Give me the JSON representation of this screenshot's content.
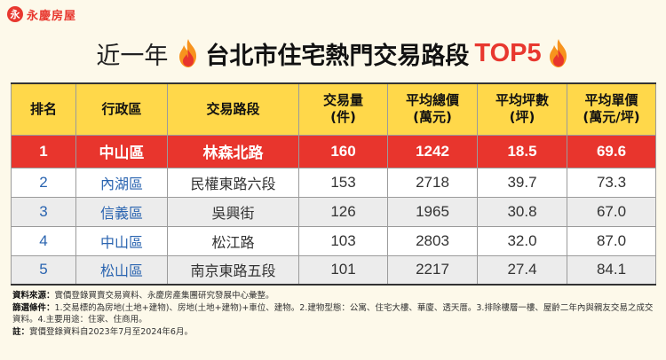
{
  "brand": {
    "logo_glyph": "永",
    "name": "永慶房屋"
  },
  "title": {
    "prefix": "近一年",
    "main": "台北市住宅熱門交易路段",
    "highlight": "TOP5",
    "flame_icon": "fire-icon"
  },
  "table": {
    "headers": [
      {
        "line1": "排名",
        "line2": ""
      },
      {
        "line1": "行政區",
        "line2": ""
      },
      {
        "line1": "交易路段",
        "line2": ""
      },
      {
        "line1": "交易量",
        "line2": "(件)"
      },
      {
        "line1": "平均總價",
        "line2": "(萬元)"
      },
      {
        "line1": "平均坪數",
        "line2": "(坪)"
      },
      {
        "line1": "平均單價",
        "line2": "(萬元/坪)"
      }
    ],
    "rows": [
      {
        "rank": "1",
        "district": "中山區",
        "road": "林森北路",
        "volume": "160",
        "avg_total": "1242",
        "avg_size": "18.5",
        "avg_unit": "69.6"
      },
      {
        "rank": "2",
        "district": "內湖區",
        "road": "民權東路六段",
        "volume": "153",
        "avg_total": "2718",
        "avg_size": "39.7",
        "avg_unit": "73.3"
      },
      {
        "rank": "3",
        "district": "信義區",
        "road": "吳興街",
        "volume": "126",
        "avg_total": "1965",
        "avg_size": "30.8",
        "avg_unit": "67.0"
      },
      {
        "rank": "4",
        "district": "中山區",
        "road": "松江路",
        "volume": "103",
        "avg_total": "2803",
        "avg_size": "32.0",
        "avg_unit": "87.0"
      },
      {
        "rank": "5",
        "district": "松山區",
        "road": "南京東路五段",
        "volume": "101",
        "avg_total": "2217",
        "avg_size": "27.4",
        "avg_unit": "84.1"
      }
    ]
  },
  "notes": {
    "source_label": "資料來源：",
    "source_text": "實價登錄買賣交易資料、永慶房產集團研究發展中心彙整。",
    "filter_label": "篩選條件：",
    "filter_text": "1.交易標的為房地(土地+建物)、房地(土地+建物)+車位、建物。2.建物型態：公寓、住宅大樓、華廈、透天厝。3.排除樓層一樓、屋齡二年內與親友交易之成交資料。4.主要用途：住家、住商用。",
    "note_label": "註：",
    "note_text": "實價登錄資料自2023年7月至2024年6月。"
  },
  "colors": {
    "accent_red": "#e8352d",
    "header_yellow": "#ffd84a",
    "link_blue": "#2a64b0",
    "background": "#fdf9ea"
  }
}
